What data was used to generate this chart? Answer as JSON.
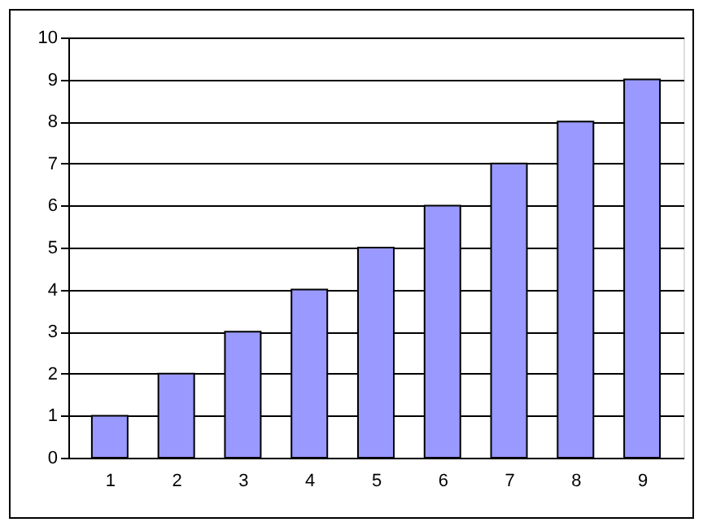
{
  "chart_data": {
    "type": "bar",
    "categories": [
      "1",
      "2",
      "3",
      "4",
      "5",
      "6",
      "7",
      "8",
      "9"
    ],
    "values": [
      1,
      2,
      3,
      4,
      5,
      6,
      7,
      8,
      9
    ],
    "color": "#9999ff",
    "ylim": [
      0,
      10
    ],
    "yticks": [
      0,
      1,
      2,
      3,
      4,
      5,
      6,
      7,
      8,
      9,
      10
    ],
    "grid": "y"
  }
}
